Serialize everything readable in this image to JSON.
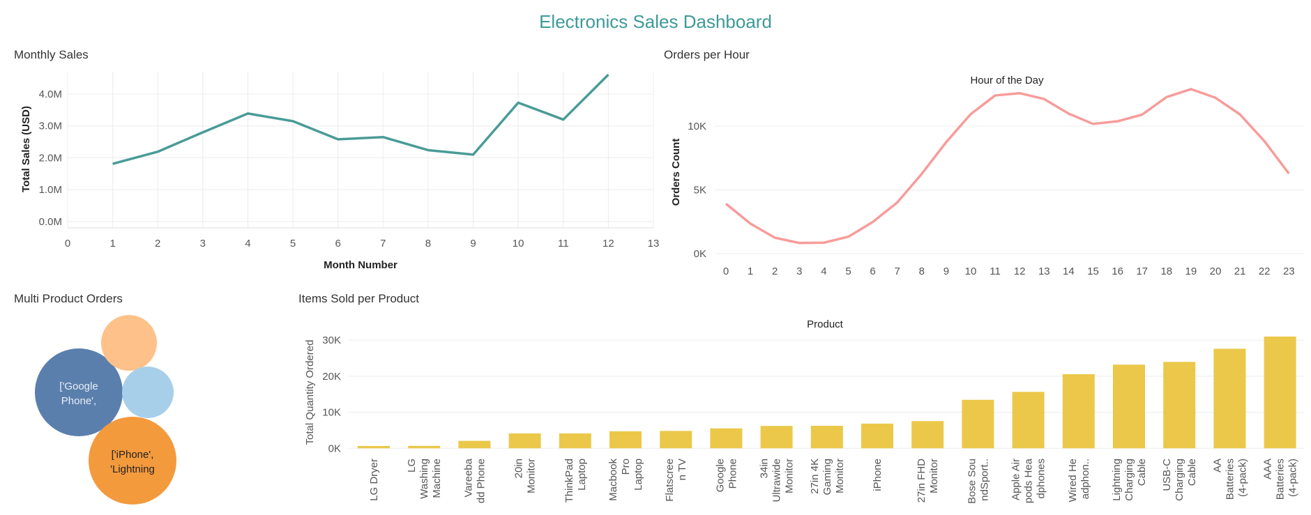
{
  "dashboard": {
    "title": "Electronics Sales Dashboard"
  },
  "panels": {
    "monthly_sales": "Monthly Sales",
    "orders_per_hour": "Orders per Hour",
    "multi_product": "Multi Product Orders",
    "items_sold": "Items Sold per Product"
  },
  "chart_data": [
    {
      "id": "monthly_sales",
      "type": "line",
      "title": "Monthly Sales",
      "xlabel": "Month Number",
      "ylabel": "Total Sales (USD)",
      "x": [
        1,
        2,
        3,
        4,
        5,
        6,
        7,
        8,
        9,
        10,
        11,
        12
      ],
      "values": [
        1.81,
        2.19,
        2.8,
        3.39,
        3.15,
        2.58,
        2.65,
        2.24,
        2.1,
        3.73,
        3.2,
        4.61
      ],
      "value_unit": "M USD",
      "xlim": [
        0,
        13
      ],
      "ylim": [
        -0.2,
        4.7
      ],
      "x_ticks": [
        "0",
        "1",
        "2",
        "3",
        "4",
        "5",
        "6",
        "7",
        "8",
        "9",
        "10",
        "11",
        "12",
        "13"
      ],
      "y_ticks": [
        {
          "value": 0,
          "label": "0.0M"
        },
        {
          "value": 1,
          "label": "1.0M"
        },
        {
          "value": 2,
          "label": "2.0M"
        },
        {
          "value": 3,
          "label": "3.0M"
        },
        {
          "value": 4,
          "label": "4.0M"
        }
      ],
      "color": "#4a9b97",
      "grid": true
    },
    {
      "id": "orders_per_hour",
      "type": "line",
      "title": "Orders per Hour",
      "xlabel": "Hour of the Day",
      "ylabel": "Orders Count",
      "x": [
        0,
        1,
        2,
        3,
        4,
        5,
        6,
        7,
        8,
        9,
        10,
        11,
        12,
        13,
        14,
        15,
        16,
        17,
        18,
        19,
        20,
        21,
        22,
        23
      ],
      "values": [
        3910,
        2350,
        1243,
        831,
        854,
        1321,
        2482,
        4011,
        6256,
        8748,
        10944,
        12411,
        12587,
        12129,
        10984,
        10175,
        10384,
        10899,
        12280,
        12905,
        12228,
        10921,
        8822,
        6275
      ],
      "ylim": [
        -500,
        12900
      ],
      "x_ticks": [
        "0",
        "1",
        "2",
        "3",
        "4",
        "5",
        "6",
        "7",
        "8",
        "9",
        "10",
        "11",
        "12",
        "13",
        "14",
        "15",
        "16",
        "17",
        "18",
        "19",
        "20",
        "21",
        "22",
        "23"
      ],
      "y_ticks": [
        {
          "value": 0,
          "label": "0K"
        },
        {
          "value": 5000,
          "label": "5K"
        },
        {
          "value": 10000,
          "label": "10K"
        }
      ],
      "color": "#f79c9a",
      "grid": true
    },
    {
      "id": "multi_product",
      "type": "bubble",
      "title": "Multi Product Orders",
      "bubbles": [
        {
          "label": "['Google Phone',",
          "value": 1000,
          "color": "#5b7fad",
          "text_color": "#e8eef6"
        },
        {
          "label": "['iPhone', 'Lightning",
          "value": 1000,
          "color": "#f39a3d",
          "text_color": "#222222"
        },
        {
          "label": "",
          "value": 400,
          "color": "#fec189",
          "text_color": "#222222"
        },
        {
          "label": "",
          "value": 340,
          "color": "#a8cfea",
          "text_color": "#222222"
        }
      ]
    },
    {
      "id": "items_sold",
      "type": "bar",
      "title": "Items Sold per Product",
      "xlabel": "Product",
      "ylabel": "Total Quantity Ordered",
      "categories": [
        [
          "LG Dryer"
        ],
        [
          "LG",
          "Washing",
          "Machine"
        ],
        [
          "Vareeba",
          "dd Phone"
        ],
        [
          "20in",
          "Monitor"
        ],
        [
          "ThinkPad",
          "Laptop"
        ],
        [
          "Macbook",
          "Pro",
          "Laptop"
        ],
        [
          "Flatscree",
          "n TV"
        ],
        [
          "Google",
          "Phone"
        ],
        [
          "34in",
          "Ultrawide",
          "Monitor"
        ],
        [
          "27in 4K",
          "Gaming",
          "Monitor"
        ],
        [
          "iPhone"
        ],
        [
          "27in FHD",
          "Monitor"
        ],
        [
          "Bose Sou",
          "ndSport.."
        ],
        [
          "Apple Air",
          "pods Hea",
          "dphones"
        ],
        [
          "Wired He",
          "adphon.."
        ],
        [
          "Lightning",
          "Charging",
          "Cable"
        ],
        [
          "USB-C",
          "Charging",
          "Cable"
        ],
        [
          "AA",
          "Batteries",
          "(4-pack)"
        ],
        [
          "AAA",
          "Batteries",
          "(4-pack)"
        ]
      ],
      "values": [
        646,
        666,
        2068,
        4129,
        4130,
        4728,
        4819,
        5532,
        6199,
        6244,
        6849,
        7550,
        13457,
        15661,
        20557,
        23217,
        23975,
        27635,
        31017
      ],
      "ylim": [
        -1300,
        31000
      ],
      "y_ticks": [
        {
          "value": 0,
          "label": "0K"
        },
        {
          "value": 10000,
          "label": "10K"
        },
        {
          "value": 20000,
          "label": "20K"
        },
        {
          "value": 30000,
          "label": "30K"
        }
      ],
      "color": "#ebc84a",
      "grid": true
    }
  ]
}
